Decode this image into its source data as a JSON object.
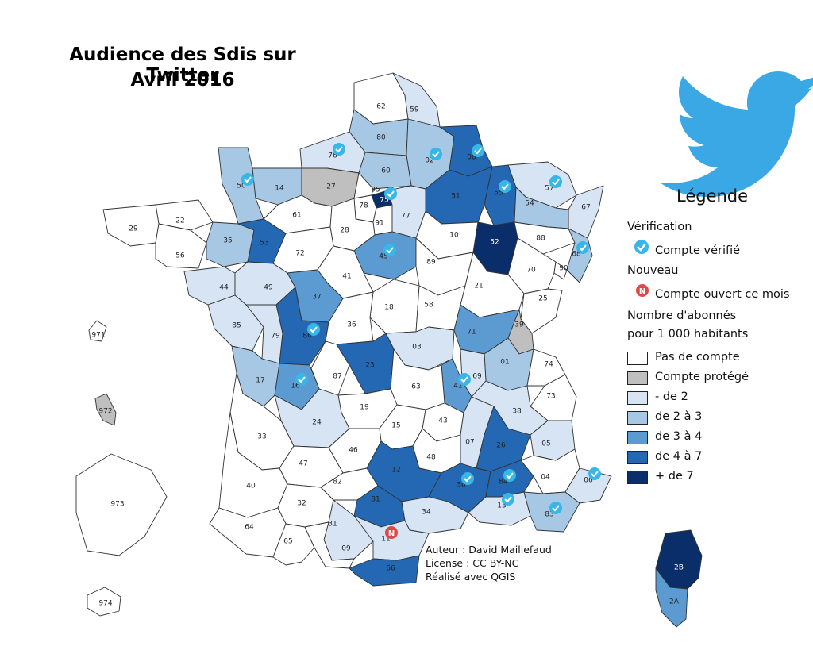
{
  "title_line1": "Audience des Sdis sur Twitter",
  "title_line2": "Avril 2016",
  "legend": {
    "title": "Légende",
    "verification_heading": "Vérification",
    "verified_label": "Compte vérifié",
    "new_heading": "Nouveau",
    "new_label": "Compte ouvert ce mois",
    "new_badge_letter": "N",
    "subscribers_heading_1": "Nombre d'abonnés",
    "subscribers_heading_2": "pour 1 000 habitants",
    "classes": [
      {
        "label": "Pas de compte",
        "color": "#ffffff"
      },
      {
        "label": "Compte protégé",
        "color": "#bfbfbf"
      },
      {
        "label": "- de 2",
        "color": "#d6e4f4"
      },
      {
        "label": "de 2 à 3",
        "color": "#a7c8e5"
      },
      {
        "label": "de 3 à 4",
        "color": "#5c9bd1"
      },
      {
        "label": "de 4 à 7",
        "color": "#2467b2"
      },
      {
        "label": "+ de 7",
        "color": "#0a2e6a"
      }
    ]
  },
  "credits": {
    "author": "Auteur : David Maillefaud",
    "license": "License : CC BY-NC",
    "made_with": "Réalisé avec QGIS"
  },
  "colors": {
    "border": "#333333",
    "verified_badge": "#38b6e8",
    "new_badge": "#e04848",
    "twitter_bird": "#3aa8e4"
  },
  "departments": [
    {
      "code": "62",
      "cls": 0
    },
    {
      "code": "59",
      "cls": 2
    },
    {
      "code": "80",
      "cls": 3
    },
    {
      "code": "76",
      "cls": 2,
      "verified": true
    },
    {
      "code": "02",
      "cls": 3,
      "verified": true
    },
    {
      "code": "08",
      "cls": 5,
      "verified": true
    },
    {
      "code": "60",
      "cls": 3
    },
    {
      "code": "50",
      "cls": 3,
      "verified": true
    },
    {
      "code": "14",
      "cls": 3
    },
    {
      "code": "27",
      "cls": 1
    },
    {
      "code": "95",
      "cls": 0
    },
    {
      "code": "75",
      "cls": 6,
      "verified": true
    },
    {
      "code": "51",
      "cls": 5
    },
    {
      "code": "55",
      "cls": 5,
      "verified": true
    },
    {
      "code": "57",
      "cls": 2,
      "verified": true
    },
    {
      "code": "67",
      "cls": 2
    },
    {
      "code": "54",
      "cls": 3
    },
    {
      "code": "22",
      "cls": 0
    },
    {
      "code": "29",
      "cls": 0
    },
    {
      "code": "61",
      "cls": 0
    },
    {
      "code": "78",
      "cls": 0
    },
    {
      "code": "91",
      "cls": 0
    },
    {
      "code": "77",
      "cls": 2
    },
    {
      "code": "28",
      "cls": 0
    },
    {
      "code": "56",
      "cls": 0
    },
    {
      "code": "35",
      "cls": 3
    },
    {
      "code": "53",
      "cls": 5
    },
    {
      "code": "72",
      "cls": 0
    },
    {
      "code": "45",
      "cls": 4,
      "verified": true
    },
    {
      "code": "10",
      "cls": 0
    },
    {
      "code": "52",
      "cls": 6
    },
    {
      "code": "88",
      "cls": 0
    },
    {
      "code": "68",
      "cls": 3,
      "verified": true
    },
    {
      "code": "44",
      "cls": 2
    },
    {
      "code": "49",
      "cls": 2
    },
    {
      "code": "41",
      "cls": 0
    },
    {
      "code": "89",
      "cls": 0
    },
    {
      "code": "70",
      "cls": 0
    },
    {
      "code": "90",
      "cls": 0
    },
    {
      "code": "37",
      "cls": 4
    },
    {
      "code": "21",
      "cls": 0
    },
    {
      "code": "25",
      "cls": 0
    },
    {
      "code": "18",
      "cls": 0
    },
    {
      "code": "58",
      "cls": 0
    },
    {
      "code": "85",
      "cls": 2
    },
    {
      "code": "79",
      "cls": 2
    },
    {
      "code": "86",
      "cls": 5,
      "verified": true
    },
    {
      "code": "36",
      "cls": 0
    },
    {
      "code": "71",
      "cls": 4
    },
    {
      "code": "39",
      "cls": 1
    },
    {
      "code": "03",
      "cls": 2
    },
    {
      "code": "01",
      "cls": 3
    },
    {
      "code": "74",
      "cls": 0
    },
    {
      "code": "87",
      "cls": 0
    },
    {
      "code": "23",
      "cls": 5
    },
    {
      "code": "69",
      "cls": 2
    },
    {
      "code": "17",
      "cls": 3
    },
    {
      "code": "16",
      "cls": 4,
      "verified": true
    },
    {
      "code": "42",
      "cls": 4,
      "verified": true
    },
    {
      "code": "63",
      "cls": 0
    },
    {
      "code": "73",
      "cls": 0
    },
    {
      "code": "38",
      "cls": 2
    },
    {
      "code": "19",
      "cls": 0
    },
    {
      "code": "24",
      "cls": 2
    },
    {
      "code": "43",
      "cls": 0
    },
    {
      "code": "15",
      "cls": 0
    },
    {
      "code": "07",
      "cls": 2
    },
    {
      "code": "26",
      "cls": 5
    },
    {
      "code": "05",
      "cls": 2
    },
    {
      "code": "33",
      "cls": 0
    },
    {
      "code": "46",
      "cls": 0
    },
    {
      "code": "48",
      "cls": 0
    },
    {
      "code": "47",
      "cls": 0
    },
    {
      "code": "12",
      "cls": 5
    },
    {
      "code": "82",
      "cls": 0
    },
    {
      "code": "30",
      "cls": 5,
      "verified": true
    },
    {
      "code": "84",
      "cls": 5,
      "verified": true
    },
    {
      "code": "04",
      "cls": 0
    },
    {
      "code": "06",
      "cls": 2,
      "verified": true
    },
    {
      "code": "40",
      "cls": 0
    },
    {
      "code": "81",
      "cls": 5
    },
    {
      "code": "32",
      "cls": 0
    },
    {
      "code": "34",
      "cls": 2
    },
    {
      "code": "13",
      "cls": 2,
      "verified": true
    },
    {
      "code": "83",
      "cls": 3,
      "verified": true
    },
    {
      "code": "31",
      "cls": 2
    },
    {
      "code": "64",
      "cls": 0
    },
    {
      "code": "11",
      "cls": 2,
      "new": true
    },
    {
      "code": "65",
      "cls": 0
    },
    {
      "code": "09",
      "cls": 0
    },
    {
      "code": "66",
      "cls": 5
    },
    {
      "code": "2B",
      "cls": 6
    },
    {
      "code": "2A",
      "cls": 4
    },
    {
      "code": "971",
      "cls": 0
    },
    {
      "code": "972",
      "cls": 1
    },
    {
      "code": "973",
      "cls": 0
    },
    {
      "code": "974",
      "cls": 0
    }
  ]
}
